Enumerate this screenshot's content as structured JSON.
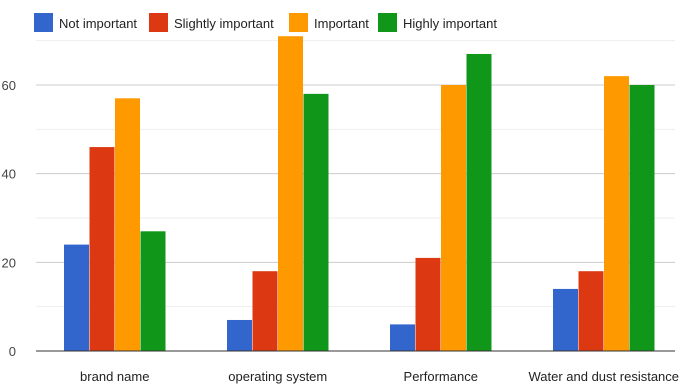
{
  "chart_data": {
    "type": "bar",
    "categories": [
      "brand name",
      "operating system",
      "Performance",
      "Water and dust resistance"
    ],
    "series": [
      {
        "name": "Not important",
        "color": "#3366cc",
        "values": [
          24,
          7,
          6,
          14
        ]
      },
      {
        "name": "Slightly important",
        "color": "#dc3912",
        "values": [
          46,
          18,
          21,
          18
        ]
      },
      {
        "name": "Important",
        "color": "#ff9900",
        "values": [
          57,
          71,
          60,
          62
        ]
      },
      {
        "name": "Highly important",
        "color": "#109618",
        "values": [
          27,
          58,
          67,
          60
        ]
      }
    ],
    "y_ticks": [
      0,
      20,
      40,
      60
    ],
    "ylim": [
      0,
      72
    ],
    "grid": true,
    "legend_position": "top-left"
  }
}
